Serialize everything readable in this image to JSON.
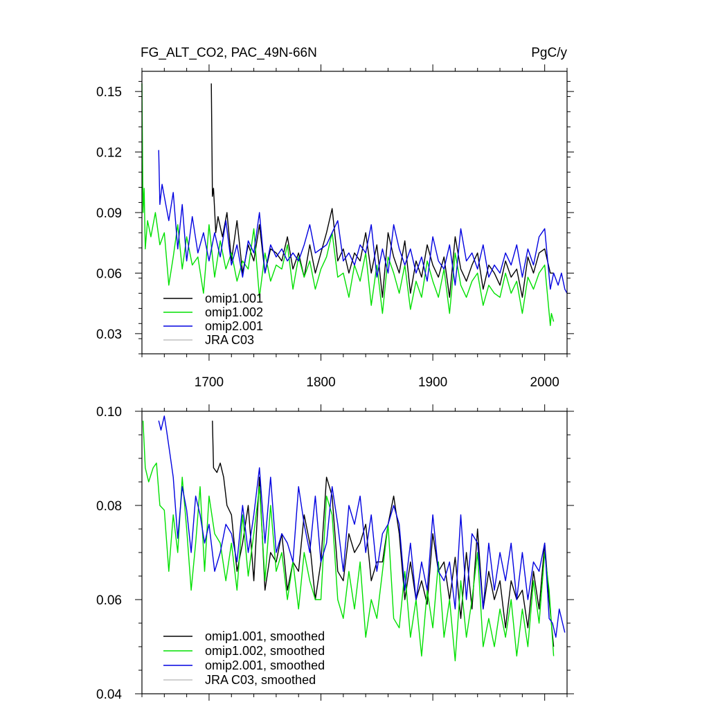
{
  "figure": {
    "title": "FG_ALT_CO2, PAC_49N-66N",
    "units": "PgC/y"
  },
  "chart_data": [
    {
      "type": "line",
      "panel": "top",
      "xlim": [
        1640,
        2020
      ],
      "ylim": [
        0.02,
        0.16
      ],
      "x_ticks": [
        1700,
        1800,
        1900,
        2000
      ],
      "y_ticks": [
        0.03,
        0.06,
        0.09,
        0.12,
        0.15
      ],
      "y_tick_labels": [
        "0.03",
        "0.06",
        "0.09",
        "0.12",
        "0.15"
      ],
      "legend_position": "bottom-left",
      "series": [
        {
          "name": "omip1.001",
          "color": "#000000",
          "x": [
            1702,
            1703,
            1704,
            1706,
            1708,
            1712,
            1716,
            1720,
            1725,
            1730,
            1735,
            1740,
            1745,
            1750,
            1755,
            1760,
            1765,
            1770,
            1775,
            1780,
            1785,
            1790,
            1795,
            1800,
            1805,
            1810,
            1815,
            1820,
            1825,
            1830,
            1835,
            1840,
            1845,
            1850,
            1855,
            1860,
            1865,
            1870,
            1875,
            1880,
            1885,
            1890,
            1895,
            1900,
            1905,
            1910,
            1915,
            1920,
            1925,
            1930,
            1935,
            1940,
            1945,
            1950,
            1955,
            1960,
            1965,
            1970,
            1975,
            1980,
            1985,
            1990,
            1995,
            2000,
            2005,
            2008
          ],
          "values": [
            0.154,
            0.098,
            0.102,
            0.08,
            0.088,
            0.078,
            0.09,
            0.066,
            0.086,
            0.06,
            0.074,
            0.066,
            0.084,
            0.06,
            0.072,
            0.07,
            0.066,
            0.078,
            0.062,
            0.07,
            0.058,
            0.074,
            0.06,
            0.07,
            0.08,
            0.092,
            0.066,
            0.072,
            0.06,
            0.07,
            0.066,
            0.08,
            0.06,
            0.074,
            0.048,
            0.08,
            0.068,
            0.06,
            0.076,
            0.05,
            0.066,
            0.058,
            0.074,
            0.064,
            0.058,
            0.068,
            0.048,
            0.078,
            0.062,
            0.056,
            0.064,
            0.07,
            0.052,
            0.064,
            0.06,
            0.054,
            0.066,
            0.058,
            0.062,
            0.048,
            0.068,
            0.06,
            0.07,
            0.072,
            0.06,
            0.06
          ]
        },
        {
          "name": "omip1.002",
          "color": "#00e000",
          "x": [
            1640,
            1641,
            1642,
            1643,
            1645,
            1648,
            1652,
            1656,
            1660,
            1664,
            1668,
            1672,
            1676,
            1680,
            1685,
            1690,
            1695,
            1700,
            1705,
            1710,
            1715,
            1720,
            1725,
            1730,
            1735,
            1740,
            1745,
            1750,
            1755,
            1760,
            1765,
            1770,
            1775,
            1780,
            1785,
            1790,
            1795,
            1800,
            1805,
            1810,
            1815,
            1820,
            1825,
            1830,
            1835,
            1840,
            1845,
            1850,
            1855,
            1860,
            1865,
            1870,
            1875,
            1880,
            1885,
            1890,
            1895,
            1900,
            1905,
            1910,
            1915,
            1920,
            1925,
            1930,
            1935,
            1940,
            1945,
            1950,
            1955,
            1960,
            1965,
            1970,
            1975,
            1980,
            1985,
            1990,
            1995,
            2000,
            2005,
            2006,
            2008
          ],
          "values": [
            0.154,
            0.09,
            0.102,
            0.072,
            0.086,
            0.078,
            0.09,
            0.074,
            0.08,
            0.054,
            0.068,
            0.084,
            0.062,
            0.078,
            0.064,
            0.068,
            0.05,
            0.084,
            0.058,
            0.076,
            0.062,
            0.07,
            0.056,
            0.066,
            0.062,
            0.082,
            0.048,
            0.07,
            0.056,
            0.064,
            0.062,
            0.074,
            0.052,
            0.068,
            0.058,
            0.066,
            0.052,
            0.062,
            0.068,
            0.08,
            0.058,
            0.06,
            0.048,
            0.064,
            0.056,
            0.07,
            0.044,
            0.064,
            0.04,
            0.068,
            0.06,
            0.05,
            0.064,
            0.042,
            0.056,
            0.048,
            0.066,
            0.056,
            0.048,
            0.062,
            0.04,
            0.07,
            0.054,
            0.048,
            0.056,
            0.06,
            0.044,
            0.054,
            0.05,
            0.048,
            0.06,
            0.05,
            0.056,
            0.04,
            0.058,
            0.052,
            0.06,
            0.064,
            0.034,
            0.04,
            0.036
          ]
        },
        {
          "name": "omip2.001",
          "color": "#0000e0",
          "x": [
            1655,
            1656,
            1658,
            1660,
            1664,
            1668,
            1672,
            1676,
            1680,
            1685,
            1690,
            1695,
            1700,
            1705,
            1710,
            1715,
            1720,
            1725,
            1730,
            1735,
            1740,
            1745,
            1750,
            1755,
            1760,
            1765,
            1770,
            1775,
            1780,
            1785,
            1790,
            1795,
            1800,
            1805,
            1810,
            1815,
            1820,
            1825,
            1830,
            1835,
            1840,
            1845,
            1850,
            1855,
            1860,
            1865,
            1870,
            1875,
            1880,
            1885,
            1890,
            1895,
            1900,
            1905,
            1910,
            1915,
            1920,
            1925,
            1930,
            1935,
            1940,
            1945,
            1950,
            1955,
            1960,
            1965,
            1970,
            1975,
            1980,
            1985,
            1990,
            1995,
            2000,
            2005,
            2008,
            2012,
            2015,
            2018,
            2020
          ],
          "values": [
            0.121,
            0.094,
            0.104,
            0.098,
            0.086,
            0.1,
            0.072,
            0.094,
            0.066,
            0.088,
            0.07,
            0.08,
            0.066,
            0.08,
            0.068,
            0.086,
            0.064,
            0.074,
            0.058,
            0.076,
            0.07,
            0.09,
            0.06,
            0.074,
            0.068,
            0.072,
            0.066,
            0.07,
            0.066,
            0.074,
            0.084,
            0.07,
            0.072,
            0.074,
            0.08,
            0.086,
            0.066,
            0.07,
            0.064,
            0.074,
            0.07,
            0.084,
            0.058,
            0.072,
            0.06,
            0.084,
            0.072,
            0.064,
            0.072,
            0.06,
            0.068,
            0.056,
            0.078,
            0.066,
            0.062,
            0.074,
            0.054,
            0.082,
            0.066,
            0.07,
            0.062,
            0.074,
            0.058,
            0.064,
            0.06,
            0.07,
            0.064,
            0.074,
            0.058,
            0.072,
            0.064,
            0.078,
            0.082,
            0.052,
            0.06,
            0.054,
            0.06,
            0.052,
            0.05
          ]
        }
      ]
    },
    {
      "type": "line",
      "panel": "bottom",
      "xlim": [
        1640,
        2020
      ],
      "ylim": [
        0.04,
        0.1
      ],
      "x_ticks": [
        1700,
        1800,
        1900,
        2000
      ],
      "y_ticks": [
        0.04,
        0.06,
        0.08,
        0.1
      ],
      "y_tick_labels": [
        "0.04",
        "0.06",
        "0.08",
        "0.10"
      ],
      "legend_position": "bottom-left",
      "series": [
        {
          "name": "omip1.001, smoothed",
          "color": "#000000",
          "x": [
            1703,
            1704,
            1707,
            1710,
            1713,
            1716,
            1720,
            1725,
            1730,
            1735,
            1740,
            1745,
            1750,
            1755,
            1760,
            1765,
            1770,
            1775,
            1780,
            1785,
            1790,
            1795,
            1800,
            1805,
            1810,
            1815,
            1820,
            1825,
            1830,
            1835,
            1840,
            1845,
            1850,
            1855,
            1860,
            1865,
            1870,
            1875,
            1880,
            1885,
            1890,
            1895,
            1900,
            1905,
            1910,
            1915,
            1920,
            1925,
            1930,
            1935,
            1940,
            1945,
            1950,
            1955,
            1960,
            1965,
            1970,
            1975,
            1980,
            1985,
            1990,
            1995,
            2000,
            2004,
            2008
          ],
          "values": [
            0.098,
            0.088,
            0.087,
            0.089,
            0.086,
            0.08,
            0.078,
            0.066,
            0.072,
            0.08,
            0.064,
            0.086,
            0.062,
            0.07,
            0.068,
            0.074,
            0.062,
            0.068,
            0.066,
            0.078,
            0.072,
            0.06,
            0.068,
            0.086,
            0.082,
            0.066,
            0.064,
            0.074,
            0.07,
            0.072,
            0.076,
            0.064,
            0.068,
            0.068,
            0.076,
            0.082,
            0.074,
            0.06,
            0.068,
            0.06,
            0.064,
            0.059,
            0.074,
            0.066,
            0.068,
            0.06,
            0.069,
            0.056,
            0.07,
            0.058,
            0.075,
            0.058,
            0.066,
            0.06,
            0.064,
            0.054,
            0.064,
            0.06,
            0.062,
            0.054,
            0.066,
            0.058,
            0.072,
            0.06,
            0.05
          ]
        },
        {
          "name": "omip1.002, smoothed",
          "color": "#00e000",
          "x": [
            1641,
            1643,
            1646,
            1650,
            1653,
            1656,
            1660,
            1664,
            1668,
            1672,
            1676,
            1680,
            1684,
            1688,
            1692,
            1696,
            1700,
            1705,
            1710,
            1715,
            1720,
            1725,
            1730,
            1735,
            1740,
            1745,
            1750,
            1755,
            1760,
            1765,
            1770,
            1775,
            1780,
            1785,
            1790,
            1795,
            1800,
            1805,
            1810,
            1815,
            1820,
            1825,
            1830,
            1835,
            1840,
            1845,
            1850,
            1855,
            1860,
            1865,
            1870,
            1875,
            1880,
            1885,
            1890,
            1895,
            1900,
            1905,
            1910,
            1915,
            1920,
            1925,
            1930,
            1935,
            1940,
            1945,
            1950,
            1955,
            1960,
            1965,
            1970,
            1975,
            1980,
            1985,
            1990,
            1995,
            2000,
            2004,
            2008
          ],
          "values": [
            0.098,
            0.088,
            0.085,
            0.088,
            0.089,
            0.08,
            0.079,
            0.066,
            0.078,
            0.07,
            0.086,
            0.075,
            0.062,
            0.072,
            0.084,
            0.066,
            0.082,
            0.074,
            0.072,
            0.064,
            0.072,
            0.062,
            0.078,
            0.065,
            0.074,
            0.084,
            0.064,
            0.08,
            0.066,
            0.07,
            0.06,
            0.068,
            0.058,
            0.07,
            0.064,
            0.06,
            0.06,
            0.082,
            0.078,
            0.06,
            0.056,
            0.066,
            0.058,
            0.068,
            0.052,
            0.06,
            0.056,
            0.066,
            0.076,
            0.056,
            0.054,
            0.066,
            0.052,
            0.06,
            0.048,
            0.062,
            0.054,
            0.068,
            0.052,
            0.06,
            0.047,
            0.064,
            0.052,
            0.06,
            0.07,
            0.05,
            0.056,
            0.05,
            0.058,
            0.052,
            0.06,
            0.048,
            0.058,
            0.05,
            0.064,
            0.055,
            0.07,
            0.062,
            0.048
          ]
        },
        {
          "name": "omip2.001, smoothed",
          "color": "#0000e0",
          "x": [
            1655,
            1656,
            1657,
            1660,
            1662,
            1665,
            1668,
            1672,
            1676,
            1680,
            1684,
            1688,
            1692,
            1696,
            1700,
            1705,
            1710,
            1715,
            1720,
            1725,
            1730,
            1735,
            1740,
            1745,
            1750,
            1755,
            1760,
            1765,
            1770,
            1775,
            1780,
            1785,
            1790,
            1795,
            1800,
            1805,
            1810,
            1815,
            1820,
            1825,
            1830,
            1835,
            1840,
            1845,
            1850,
            1855,
            1860,
            1865,
            1870,
            1875,
            1880,
            1885,
            1890,
            1895,
            1900,
            1905,
            1910,
            1915,
            1920,
            1925,
            1930,
            1935,
            1940,
            1945,
            1950,
            1955,
            1960,
            1965,
            1970,
            1975,
            1980,
            1985,
            1990,
            1995,
            2000,
            2004,
            2007,
            2010,
            2013,
            2016,
            2018
          ],
          "values": [
            0.098,
            0.097,
            0.096,
            0.099,
            0.096,
            0.091,
            0.086,
            0.073,
            0.084,
            0.079,
            0.07,
            0.082,
            0.078,
            0.072,
            0.076,
            0.066,
            0.07,
            0.076,
            0.074,
            0.068,
            0.08,
            0.07,
            0.078,
            0.088,
            0.072,
            0.086,
            0.07,
            0.074,
            0.072,
            0.068,
            0.084,
            0.076,
            0.07,
            0.082,
            0.068,
            0.072,
            0.084,
            0.076,
            0.066,
            0.08,
            0.076,
            0.082,
            0.07,
            0.078,
            0.066,
            0.074,
            0.076,
            0.08,
            0.076,
            0.062,
            0.072,
            0.06,
            0.068,
            0.062,
            0.078,
            0.066,
            0.064,
            0.068,
            0.058,
            0.078,
            0.06,
            0.074,
            0.072,
            0.058,
            0.072,
            0.062,
            0.07,
            0.064,
            0.072,
            0.06,
            0.07,
            0.06,
            0.068,
            0.066,
            0.072,
            0.056,
            0.055,
            0.052,
            0.058,
            0.055,
            0.053
          ]
        }
      ]
    }
  ],
  "legend": {
    "top": [
      {
        "label": "omip1.001",
        "color": "#000000"
      },
      {
        "label": "omip1.002",
        "color": "#00e000"
      },
      {
        "label": "omip2.001",
        "color": "#0000e0"
      },
      {
        "label": "JRA C03",
        "color": "#c0c0c0"
      }
    ],
    "bottom": [
      {
        "label": "omip1.001, smoothed",
        "color": "#000000"
      },
      {
        "label": "omip1.002, smoothed",
        "color": "#00e000"
      },
      {
        "label": "omip2.001, smoothed",
        "color": "#0000e0"
      },
      {
        "label": "JRA C03, smoothed",
        "color": "#c0c0c0"
      }
    ]
  },
  "x_tick_labels": [
    "1700",
    "1800",
    "1900",
    "2000"
  ]
}
